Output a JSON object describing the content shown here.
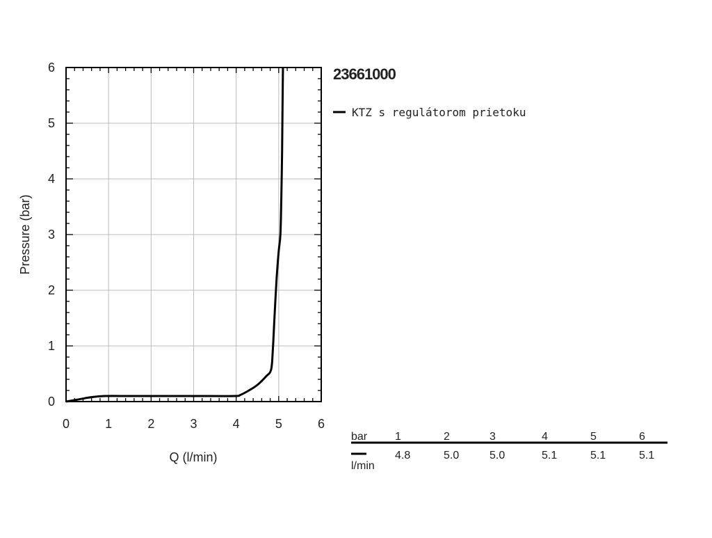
{
  "chart_data": {
    "type": "line",
    "title": "23661000",
    "xlabel": "Q (l/min)",
    "ylabel": "Pressure (bar)",
    "xlim": [
      0,
      6
    ],
    "ylim": [
      0,
      6
    ],
    "x_ticks": [
      "0",
      "1",
      "2",
      "3",
      "4",
      "5",
      "6"
    ],
    "y_ticks": [
      "0",
      "1",
      "2",
      "3",
      "4",
      "5",
      "6"
    ],
    "grid": true,
    "legend_position": "right",
    "series": [
      {
        "name": "KTZ s regulátorom prietoku",
        "color": "#000000",
        "points": [
          [
            0,
            0
          ],
          [
            0.3,
            0.04
          ],
          [
            0.6,
            0.08
          ],
          [
            0.9,
            0.1
          ],
          [
            1.5,
            0.1
          ],
          [
            2,
            0.1
          ],
          [
            3,
            0.1
          ],
          [
            3.95,
            0.1
          ],
          [
            4.1,
            0.12
          ],
          [
            4.3,
            0.2
          ],
          [
            4.5,
            0.3
          ],
          [
            4.7,
            0.45
          ],
          [
            4.82,
            0.57
          ],
          [
            4.86,
            0.9
          ],
          [
            4.9,
            1.5
          ],
          [
            4.95,
            2.2
          ],
          [
            5.0,
            2.7
          ],
          [
            5.04,
            3.0
          ],
          [
            5.06,
            3.6
          ],
          [
            5.08,
            4.5
          ],
          [
            5.09,
            5.3
          ],
          [
            5.1,
            6.0
          ]
        ]
      }
    ]
  },
  "table": {
    "header_label": "bar",
    "row_label": "l/min",
    "pressures": [
      "1",
      "2",
      "3",
      "4",
      "5",
      "6"
    ],
    "flows": [
      "4.8",
      "5.0",
      "5.0",
      "5.1",
      "5.1",
      "5.1"
    ]
  }
}
